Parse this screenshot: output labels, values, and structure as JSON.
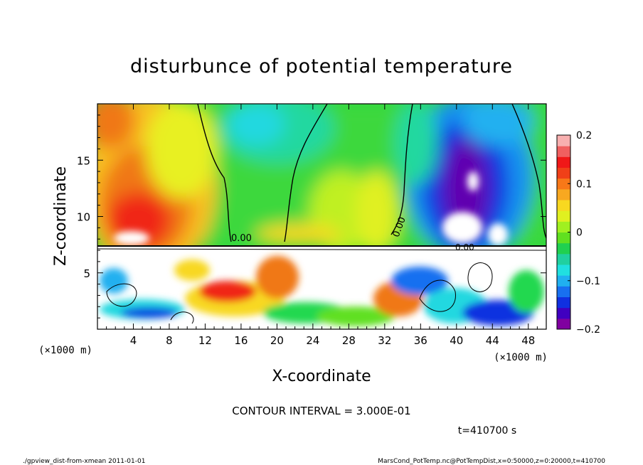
{
  "chart_data": {
    "type": "heatmap",
    "title": "disturbunce of potential temperature",
    "xlabel": "X-coordinate",
    "ylabel": "Z-coordinate",
    "x_unit": "(×1000 m)",
    "y_unit": "(×1000 m)",
    "xlim": [
      0,
      50
    ],
    "ylim": [
      0,
      20
    ],
    "x_ticks": [
      4,
      8,
      12,
      16,
      20,
      24,
      28,
      32,
      36,
      40,
      44,
      48
    ],
    "y_ticks": [
      5,
      10,
      15
    ],
    "colorbar": {
      "range": [
        -0.2,
        0.2
      ],
      "tick_values": [
        0.2,
        0.1,
        0,
        -0.1,
        -0.2
      ],
      "tick_labels": [
        "0.2",
        "0.1",
        "0",
        "−0.1",
        "−0.2"
      ],
      "colors": [
        "#8000a0",
        "#4000c0",
        "#1030e0",
        "#1870f0",
        "#20b0f0",
        "#20e0e0",
        "#20d0a0",
        "#20d050",
        "#60e020",
        "#a0f020",
        "#e0f020",
        "#f8d820",
        "#f8a820",
        "#f87818",
        "#f04018",
        "#f01818",
        "#f06060",
        "#f8b0b0"
      ]
    },
    "contour_labels": [
      "0.00",
      "0.00",
      "0.00"
    ],
    "annotations": {
      "contour_interval": "CONTOUR INTERVAL = 3.000E-01",
      "time": "t=410700 s"
    }
  },
  "footer": {
    "left": "./gpview_dist-from-xmean  2011-01-01",
    "right": "MarsCond_PotTemp.nc@PotTempDist,x=0:50000,z=0:20000,t=410700"
  }
}
